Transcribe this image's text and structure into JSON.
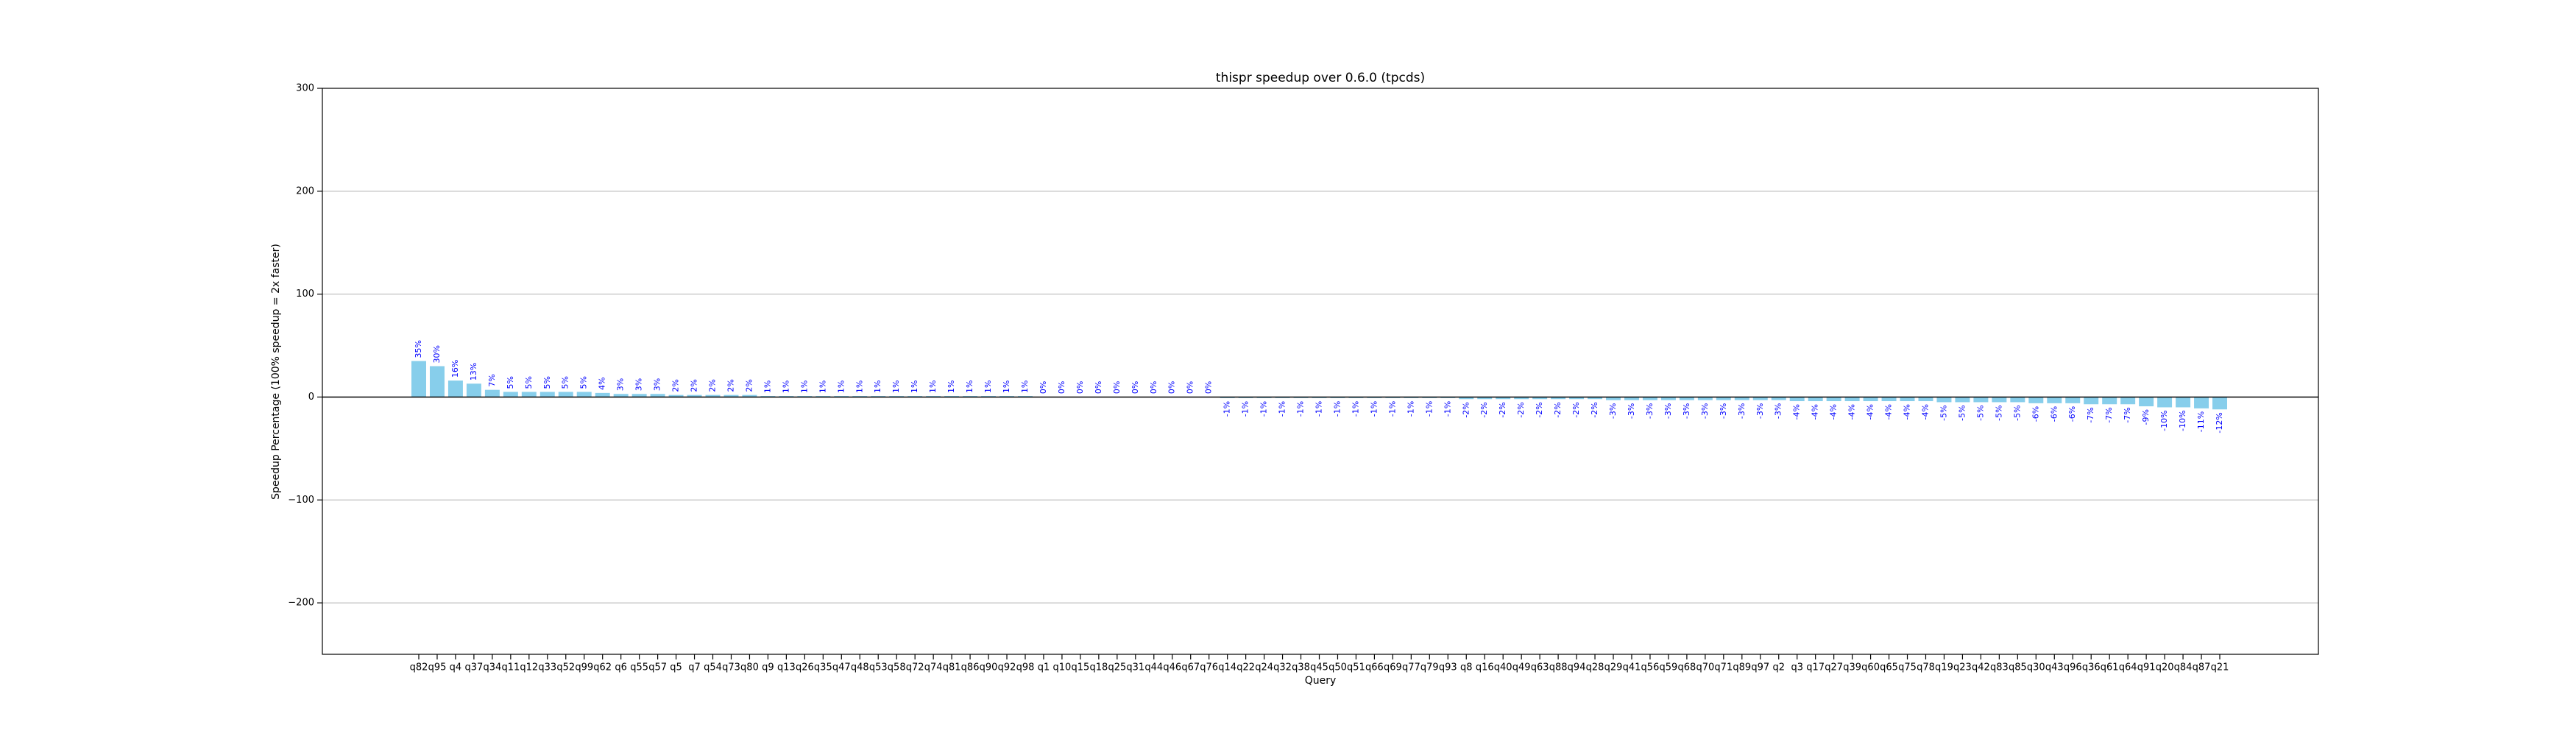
{
  "chart_data": {
    "type": "bar",
    "title": "thispr speedup over 0.6.0 (tpcds)",
    "x_label": "Query",
    "y_label": "Speedup Percentage (100% speedup = 2x faster)",
    "color": "#87ceeb",
    "label_color": "#0000ff",
    "grid": true,
    "ylim": [
      -250,
      300
    ],
    "yticks": [
      {
        "value": -200,
        "label": "−200"
      },
      {
        "value": -100,
        "label": "−100"
      },
      0,
      100,
      200,
      300
    ],
    "categories": [
      "q82",
      "q95",
      "q4",
      "q37",
      "q34",
      "q11",
      "q12",
      "q33",
      "q52",
      "q99",
      "q62",
      "q6",
      "q55",
      "q57",
      "q5",
      "q7",
      "q54",
      "q73",
      "q80",
      "q9",
      "q13",
      "q26",
      "q35",
      "q47",
      "q48",
      "q53",
      "q58",
      "q72",
      "q74",
      "q81",
      "q86",
      "q90",
      "q92",
      "q98",
      "q1",
      "q10",
      "q15",
      "q18",
      "q25",
      "q31",
      "q44",
      "q46",
      "q67",
      "q76",
      "q14",
      "q22",
      "q24",
      "q32",
      "q38",
      "q45",
      "q50",
      "q51",
      "q66",
      "q69",
      "q77",
      "q79",
      "q93",
      "q8",
      "q16",
      "q40",
      "q49",
      "q63",
      "q88",
      "q94",
      "q28",
      "q29",
      "q41",
      "q56",
      "q59",
      "q68",
      "q70",
      "q71",
      "q89",
      "q97",
      "q2",
      "q3",
      "q17",
      "q27",
      "q39",
      "q60",
      "q65",
      "q75",
      "q78",
      "q19",
      "q23",
      "q42",
      "q83",
      "q85",
      "q30",
      "q43",
      "q96",
      "q36",
      "q61",
      "q64",
      "q91",
      "q20",
      "q84",
      "q87",
      "q21"
    ],
    "values": [
      35,
      30,
      16,
      13,
      7,
      5,
      5,
      5,
      5,
      5,
      4,
      3,
      3,
      3,
      2,
      2,
      2,
      2,
      2,
      1,
      1,
      1,
      1,
      1,
      1,
      1,
      1,
      1,
      1,
      1,
      1,
      1,
      1,
      1,
      0.2,
      0.2,
      0.2,
      0.2,
      0.2,
      0.2,
      0.2,
      0.2,
      0.2,
      0.2,
      -1,
      -1,
      -1,
      -1,
      -1,
      -1,
      -1,
      -1,
      -1,
      -1,
      -1,
      -1,
      -1,
      -2,
      -2,
      -2,
      -2,
      -2,
      -2,
      -2,
      -2,
      -3,
      -3,
      -3,
      -3,
      -3,
      -3,
      -3,
      -3,
      -3,
      -3,
      -4,
      -4,
      -4,
      -4,
      -4,
      -4,
      -4,
      -4,
      -5,
      -5,
      -5,
      -5,
      -5,
      -6,
      -6,
      -6,
      -7,
      -7,
      -7,
      -9,
      -10,
      -10,
      -11,
      -12
    ],
    "value_labels": [
      "35%",
      "30%",
      "16%",
      "13%",
      "7%",
      "5%",
      "5%",
      "5%",
      "5%",
      "5%",
      "4%",
      "3%",
      "3%",
      "3%",
      "2%",
      "2%",
      "2%",
      "2%",
      "2%",
      "1%",
      "1%",
      "1%",
      "1%",
      "1%",
      "1%",
      "1%",
      "1%",
      "1%",
      "1%",
      "1%",
      "1%",
      "1%",
      "1%",
      "1%",
      "0%",
      "0%",
      "0%",
      "0%",
      "0%",
      "0%",
      "0%",
      "0%",
      "0%",
      "0%",
      "-1%",
      "-1%",
      "-1%",
      "-1%",
      "-1%",
      "-1%",
      "-1%",
      "-1%",
      "-1%",
      "-1%",
      "-1%",
      "-1%",
      "-1%",
      "-2%",
      "-2%",
      "-2%",
      "-2%",
      "-2%",
      "-2%",
      "-2%",
      "-2%",
      "-3%",
      "-3%",
      "-3%",
      "-3%",
      "-3%",
      "-3%",
      "-3%",
      "-3%",
      "-3%",
      "-3%",
      "-4%",
      "-4%",
      "-4%",
      "-4%",
      "-4%",
      "-4%",
      "-4%",
      "-4%",
      "-5%",
      "-5%",
      "-5%",
      "-5%",
      "-5%",
      "-6%",
      "-6%",
      "-6%",
      "-7%",
      "-7%",
      "-7%",
      "-9%",
      "-10%",
      "-10%",
      "-11%",
      "-12%"
    ]
  }
}
